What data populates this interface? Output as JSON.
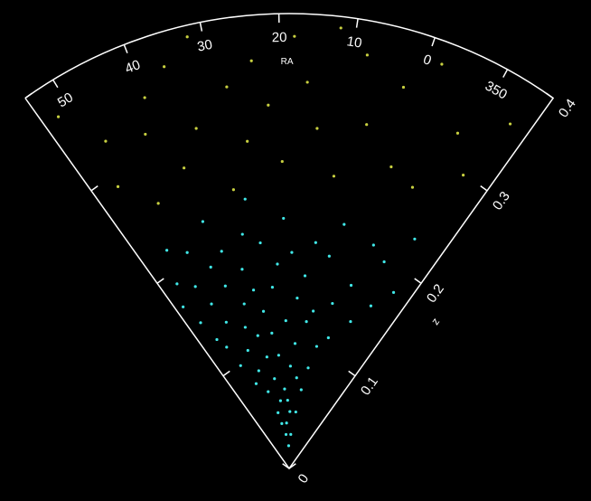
{
  "chart_data": {
    "type": "scatter",
    "x_label": "RA",
    "y_label": "z",
    "xlim": [
      54.2,
      -16.8
    ],
    "xticks": [
      50,
      40,
      30,
      20,
      10,
      0,
      {
        "value": -10,
        "label": "350"
      }
    ],
    "ylim": [
      0,
      0.4
    ],
    "yticks": [
      0,
      0.1,
      0.2,
      0.3,
      0.4
    ],
    "series": [
      {
        "color": "#40e8e8",
        "x": [
          20,
          24,
          16,
          28,
          22,
          18,
          30,
          12,
          26,
          20,
          10,
          34,
          22,
          40,
          14,
          28,
          8,
          36,
          18,
          30,
          44,
          24,
          6,
          38,
          16,
          46,
          32,
          2,
          26,
          12,
          48,
          20,
          36,
          -4,
          28,
          42,
          10,
          50,
          16,
          34,
          4,
          24,
          44,
          -8,
          30,
          52,
          14,
          38,
          0,
          22,
          46,
          -12,
          32,
          8,
          40,
          18,
          50,
          -6,
          26,
          36,
          12,
          44,
          -2,
          30,
          20,
          48,
          6,
          38,
          -10,
          28
        ],
        "values": [
          0.02,
          0.03,
          0.03,
          0.04,
          0.04,
          0.05,
          0.05,
          0.05,
          0.06,
          0.06,
          0.07,
          0.07,
          0.07,
          0.08,
          0.08,
          0.08,
          0.09,
          0.09,
          0.09,
          0.1,
          0.1,
          0.1,
          0.11,
          0.11,
          0.11,
          0.12,
          0.12,
          0.12,
          0.12,
          0.13,
          0.13,
          0.13,
          0.13,
          0.14,
          0.14,
          0.14,
          0.14,
          0.15,
          0.15,
          0.15,
          0.15,
          0.16,
          0.16,
          0.16,
          0.16,
          0.17,
          0.17,
          0.17,
          0.17,
          0.18,
          0.18,
          0.18,
          0.18,
          0.19,
          0.19,
          0.19,
          0.19,
          0.2,
          0.2,
          0.2,
          0.2,
          0.21,
          0.21,
          0.21,
          0.22,
          0.22,
          0.22,
          0.23,
          0.23,
          0.24
        ]
      },
      {
        "color": "#c8d040",
        "x": [
          30,
          10,
          45,
          -5,
          20,
          38,
          0,
          26,
          50,
          14,
          -12,
          34,
          6,
          42,
          22,
          -8,
          48,
          16,
          28,
          2,
          40,
          -14,
          24,
          36,
          8,
          52,
          18,
          -2,
          32,
          12
        ],
        "values": [
          0.25,
          0.26,
          0.26,
          0.27,
          0.27,
          0.28,
          0.28,
          0.29,
          0.29,
          0.3,
          0.3,
          0.31,
          0.31,
          0.32,
          0.32,
          0.33,
          0.33,
          0.34,
          0.34,
          0.35,
          0.35,
          0.36,
          0.36,
          0.37,
          0.37,
          0.37,
          0.38,
          0.38,
          0.39,
          0.39
        ]
      }
    ]
  }
}
